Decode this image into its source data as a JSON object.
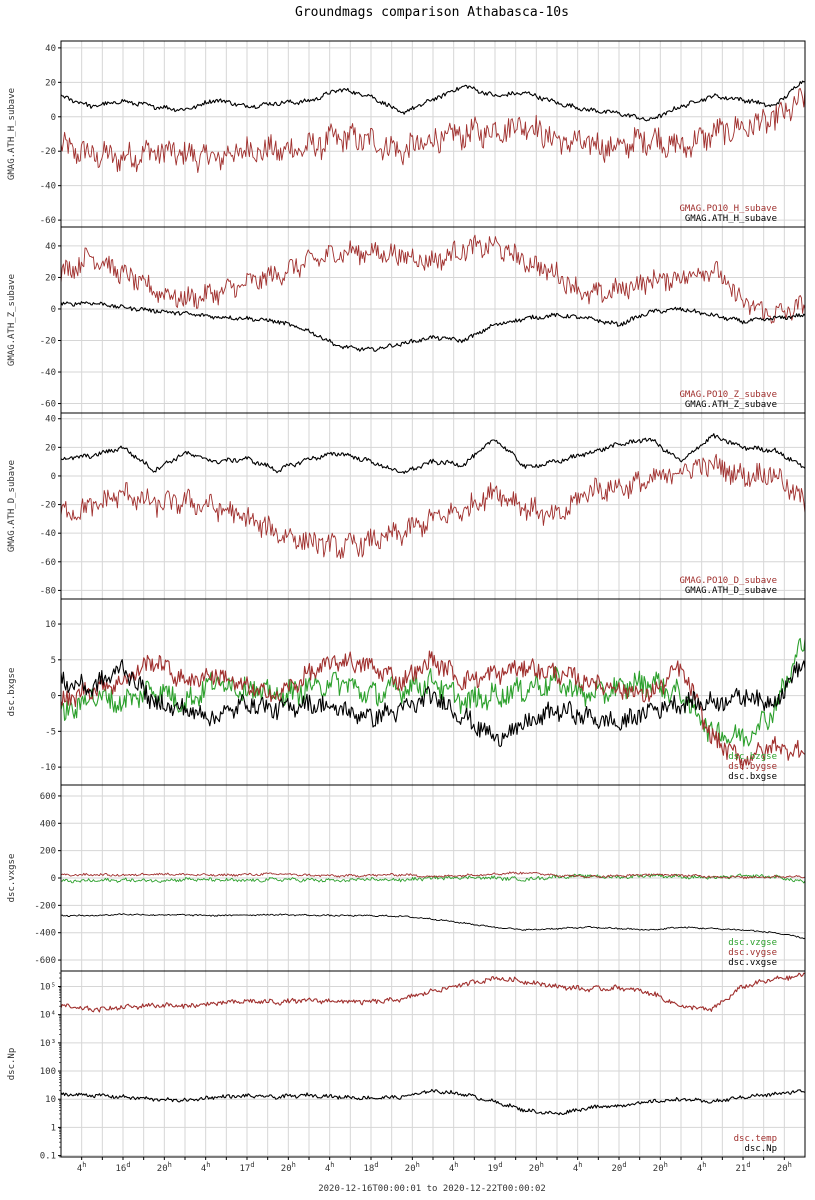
{
  "title": "Groundmags comparison Athabasca-10s",
  "footer": "2020-12-16T00:00:01 to 2020-12-22T00:00:02",
  "colors": {
    "black": "#000000",
    "red": "#a0302e",
    "green": "#2ca02c",
    "grid": "#d6d6d6"
  },
  "chart_data": [
    {
      "type": "line",
      "ylabel": "GMAG.ATH_H_subave",
      "ylim": [
        -64,
        44
      ],
      "yticks": [
        "40",
        "20",
        "0",
        "-20",
        "-40",
        "-60"
      ],
      "ytick_values": [
        40,
        20,
        0,
        -20,
        -40,
        -60
      ],
      "x_days": [
        0.0,
        0.25,
        0.5,
        0.75,
        1.0,
        1.25,
        1.5,
        1.75,
        2.0,
        2.25,
        2.5,
        2.75,
        3.0,
        3.25,
        3.5,
        3.75,
        4.0,
        4.25,
        4.5,
        4.75,
        5.0,
        5.25,
        5.5,
        5.75,
        6.0
      ],
      "series": [
        {
          "name": "GMAG.PO10_H_subave",
          "color": "#a0302e",
          "noise": 7,
          "values": [
            -18,
            -22,
            -24,
            -20,
            -22,
            -24,
            -19,
            -20,
            -18,
            -12,
            -14,
            -20,
            -14,
            -10,
            -8,
            -4,
            -14,
            -16,
            -18,
            -12,
            -18,
            -10,
            -6,
            -2,
            10
          ]
        },
        {
          "name": "GMAG.ATH_H_subave",
          "color": "#000000",
          "noise": 1.2,
          "values": [
            12,
            6,
            9,
            6,
            4,
            10,
            6,
            8,
            9,
            16,
            12,
            2,
            10,
            18,
            12,
            14,
            8,
            4,
            2,
            -2,
            6,
            12,
            10,
            6,
            22
          ]
        }
      ]
    },
    {
      "type": "line",
      "ylabel": "GMAG.ATH_Z_subave",
      "ylim": [
        -66,
        52
      ],
      "yticks": [
        "40",
        "20",
        "0",
        "-20",
        "-40",
        "-60"
      ],
      "ytick_values": [
        40,
        20,
        0,
        -20,
        -40,
        -60
      ],
      "x_days": [
        0.0,
        0.25,
        0.5,
        0.75,
        1.0,
        1.25,
        1.5,
        1.75,
        2.0,
        2.25,
        2.5,
        2.75,
        3.0,
        3.25,
        3.5,
        3.75,
        4.0,
        4.25,
        4.5,
        4.75,
        5.0,
        5.25,
        5.5,
        5.75,
        6.0
      ],
      "series": [
        {
          "name": "GMAG.PO10_Z_subave",
          "color": "#a0302e",
          "noise": 6,
          "values": [
            22,
            34,
            22,
            12,
            6,
            10,
            16,
            22,
            30,
            36,
            36,
            34,
            30,
            38,
            40,
            30,
            22,
            8,
            12,
            18,
            20,
            26,
            4,
            -4,
            2
          ]
        },
        {
          "name": "GMAG.ATH_Z_subave",
          "color": "#000000",
          "noise": 1.2,
          "values": [
            3,
            4,
            1,
            -1,
            -3,
            -5,
            -6,
            -8,
            -14,
            -24,
            -26,
            -22,
            -18,
            -20,
            -10,
            -6,
            -4,
            -6,
            -10,
            -2,
            0,
            -4,
            -8,
            -6,
            -4
          ]
        }
      ]
    },
    {
      "type": "line",
      "ylabel": "GMAG.ATH_D_subave",
      "ylim": [
        -86,
        44
      ],
      "yticks": [
        "40",
        "20",
        "0",
        "-20",
        "-40",
        "-60",
        "-80"
      ],
      "ytick_values": [
        40,
        20,
        0,
        -20,
        -40,
        -60,
        -80
      ],
      "x_days": [
        0.0,
        0.25,
        0.5,
        0.75,
        1.0,
        1.25,
        1.5,
        1.75,
        2.0,
        2.25,
        2.5,
        2.75,
        3.0,
        3.25,
        3.5,
        3.75,
        4.0,
        4.25,
        4.5,
        4.75,
        5.0,
        5.25,
        5.5,
        5.75,
        6.0
      ],
      "series": [
        {
          "name": "GMAG.PO10_D_subave",
          "color": "#a0302e",
          "noise": 7,
          "values": [
            -26,
            -22,
            -12,
            -20,
            -18,
            -22,
            -30,
            -40,
            -46,
            -50,
            -46,
            -40,
            -30,
            -24,
            -10,
            -22,
            -30,
            -10,
            -8,
            -4,
            4,
            8,
            0,
            2,
            -20
          ]
        },
        {
          "name": "GMAG.ATH_D_subave",
          "color": "#000000",
          "noise": 1.5,
          "values": [
            12,
            14,
            20,
            4,
            16,
            10,
            12,
            4,
            12,
            16,
            10,
            2,
            10,
            8,
            26,
            6,
            10,
            16,
            22,
            26,
            10,
            28,
            20,
            18,
            6
          ]
        }
      ]
    },
    {
      "type": "line",
      "ylabel": "dsc.bxgse",
      "ylim": [
        -12.5,
        13.5
      ],
      "yticks": [
        "10",
        "5",
        "0",
        "-5",
        "-10"
      ],
      "ytick_values": [
        10,
        5,
        0,
        -5,
        -10
      ],
      "x_days": [
        0.0,
        0.25,
        0.5,
        0.75,
        1.0,
        1.25,
        1.5,
        1.75,
        2.0,
        2.25,
        2.5,
        2.75,
        3.0,
        3.25,
        3.5,
        3.75,
        4.0,
        4.25,
        4.5,
        4.75,
        5.0,
        5.25,
        5.5,
        5.75,
        6.0
      ],
      "series": [
        {
          "name": "dsc.bzgse",
          "color": "#2ca02c",
          "noise": 1.5,
          "values": [
            -3,
            0,
            -1,
            1,
            -1,
            2,
            1,
            0,
            1,
            2,
            0,
            1,
            2,
            -1,
            0,
            1,
            2,
            0,
            1,
            2,
            0,
            -5,
            -6,
            -2,
            8
          ]
        },
        {
          "name": "dsc.bygse",
          "color": "#a0302e",
          "noise": 1.2,
          "values": [
            -1,
            1,
            2,
            5,
            2,
            3,
            1,
            0,
            3,
            5,
            4,
            2,
            5,
            2,
            3,
            4,
            3,
            2,
            1,
            0,
            4,
            -6,
            -9,
            -7,
            -8
          ]
        },
        {
          "name": "dsc.bxgse",
          "color": "#000000",
          "noise": 1.2,
          "values": [
            2,
            1,
            4,
            -1,
            -2,
            -3,
            -1,
            -2,
            -1,
            -2,
            -3,
            -2,
            0,
            -3,
            -6,
            -4,
            -2,
            -3,
            -4,
            -2,
            -1,
            -1,
            0,
            -1,
            5
          ]
        }
      ]
    },
    {
      "type": "line",
      "ylabel": "dsc.vxgse",
      "ylim": [
        -680,
        680
      ],
      "yticks": [
        "600",
        "400",
        "200",
        "0",
        "-200",
        "-400",
        "-600"
      ],
      "ytick_values": [
        600,
        400,
        200,
        0,
        -200,
        -400,
        -600
      ],
      "x_days": [
        0.0,
        0.25,
        0.5,
        0.75,
        1.0,
        1.25,
        1.5,
        1.75,
        2.0,
        2.25,
        2.5,
        2.75,
        3.0,
        3.25,
        3.5,
        3.75,
        4.0,
        4.25,
        4.5,
        4.75,
        5.0,
        5.25,
        5.5,
        5.75,
        6.0
      ],
      "series": [
        {
          "name": "dsc.vzgse",
          "color": "#2ca02c",
          "noise": 12,
          "values": [
            -25,
            -20,
            -15,
            -20,
            -10,
            -15,
            -20,
            -10,
            -15,
            -20,
            -10,
            -15,
            0,
            5,
            0,
            -10,
            10,
            15,
            5,
            20,
            10,
            0,
            15,
            10,
            -30
          ]
        },
        {
          "name": "dsc.vygse",
          "color": "#a0302e",
          "noise": 8,
          "values": [
            20,
            25,
            20,
            30,
            25,
            20,
            25,
            30,
            20,
            15,
            20,
            25,
            10,
            20,
            30,
            40,
            20,
            10,
            15,
            25,
            20,
            10,
            5,
            10,
            10
          ]
        },
        {
          "name": "dsc.vxgse",
          "color": "#000000",
          "noise": 5,
          "values": [
            -275,
            -275,
            -265,
            -270,
            -270,
            -275,
            -270,
            -268,
            -272,
            -275,
            -275,
            -280,
            -300,
            -330,
            -360,
            -380,
            -370,
            -360,
            -370,
            -380,
            -360,
            -370,
            -380,
            -400,
            -440
          ]
        }
      ]
    },
    {
      "type": "line",
      "scale": "log",
      "ylabel": "dsc.Np",
      "ylim_log10": [
        -1.05,
        5.55
      ],
      "yticks": [
        "10⁵",
        "10⁴",
        "10³",
        "100",
        "10",
        "1",
        "0.1"
      ],
      "ytick_values": [
        5,
        4,
        3,
        2,
        1,
        0,
        -1
      ],
      "x_days": [
        0.0,
        0.25,
        0.5,
        0.75,
        1.0,
        1.25,
        1.5,
        1.75,
        2.0,
        2.25,
        2.5,
        2.75,
        3.0,
        3.25,
        3.5,
        3.75,
        4.0,
        4.25,
        4.5,
        4.75,
        5.0,
        5.25,
        5.5,
        5.75,
        6.0
      ],
      "series": [
        {
          "name": "dsc.temp",
          "color": "#a0302e",
          "noise": 0.08,
          "values": [
            20000,
            15000,
            18000,
            22000,
            20000,
            25000,
            30000,
            28000,
            32000,
            30000,
            28000,
            35000,
            70000,
            120000,
            200000,
            150000,
            100000,
            80000,
            90000,
            60000,
            20000,
            15000,
            100000,
            180000,
            250000
          ]
        },
        {
          "name": "dsc.Np",
          "color": "#000000",
          "noise": 0.06,
          "values": [
            15,
            14,
            12,
            10,
            9,
            12,
            13,
            12,
            14,
            12,
            11,
            12,
            20,
            15,
            8,
            4,
            3,
            5,
            6,
            8,
            10,
            8,
            12,
            15,
            20
          ]
        }
      ]
    }
  ],
  "xaxis": {
    "start_label": "2020-12-16T00:00:01",
    "end_label": "2020-12-22T00:00:02",
    "tick_values_days": [
      0.1667,
      0.3333,
      0.5,
      0.6667,
      0.8333,
      1.0,
      1.1667,
      1.3333,
      1.5,
      1.6667,
      1.8333,
      2.0,
      2.1667,
      2.3333,
      2.5,
      2.6667,
      2.8333,
      3.0,
      3.1667,
      3.3333,
      3.5,
      3.6667,
      3.8333,
      4.0,
      4.1667,
      4.3333,
      4.5,
      4.6667,
      4.8333,
      5.0,
      5.1667,
      5.3333,
      5.5,
      5.6667,
      5.8333
    ],
    "labels": [
      {
        "day": 0.1667,
        "main": "4",
        "sup": "h"
      },
      {
        "day": 0.5,
        "main": "16",
        "sup": "d"
      },
      {
        "day": 0.8333,
        "main": "20",
        "sup": "h"
      },
      {
        "day": 1.1667,
        "main": "4",
        "sup": "h"
      },
      {
        "day": 1.5,
        "main": "17",
        "sup": "d"
      },
      {
        "day": 1.8333,
        "main": "20",
        "sup": "h"
      },
      {
        "day": 2.1667,
        "main": "4",
        "sup": "h"
      },
      {
        "day": 2.5,
        "main": "18",
        "sup": "d"
      },
      {
        "day": 2.8333,
        "main": "20",
        "sup": "h"
      },
      {
        "day": 3.1667,
        "main": "4",
        "sup": "h"
      },
      {
        "day": 3.5,
        "main": "19",
        "sup": "d"
      },
      {
        "day": 3.8333,
        "main": "20",
        "sup": "h"
      },
      {
        "day": 4.1667,
        "main": "4",
        "sup": "h"
      },
      {
        "day": 4.5,
        "main": "20",
        "sup": "d"
      },
      {
        "day": 4.8333,
        "main": "20",
        "sup": "h"
      },
      {
        "day": 5.1667,
        "main": "4",
        "sup": "h"
      },
      {
        "day": 5.5,
        "main": "21",
        "sup": "d"
      },
      {
        "day": 5.8333,
        "main": "20",
        "sup": "h"
      }
    ]
  }
}
